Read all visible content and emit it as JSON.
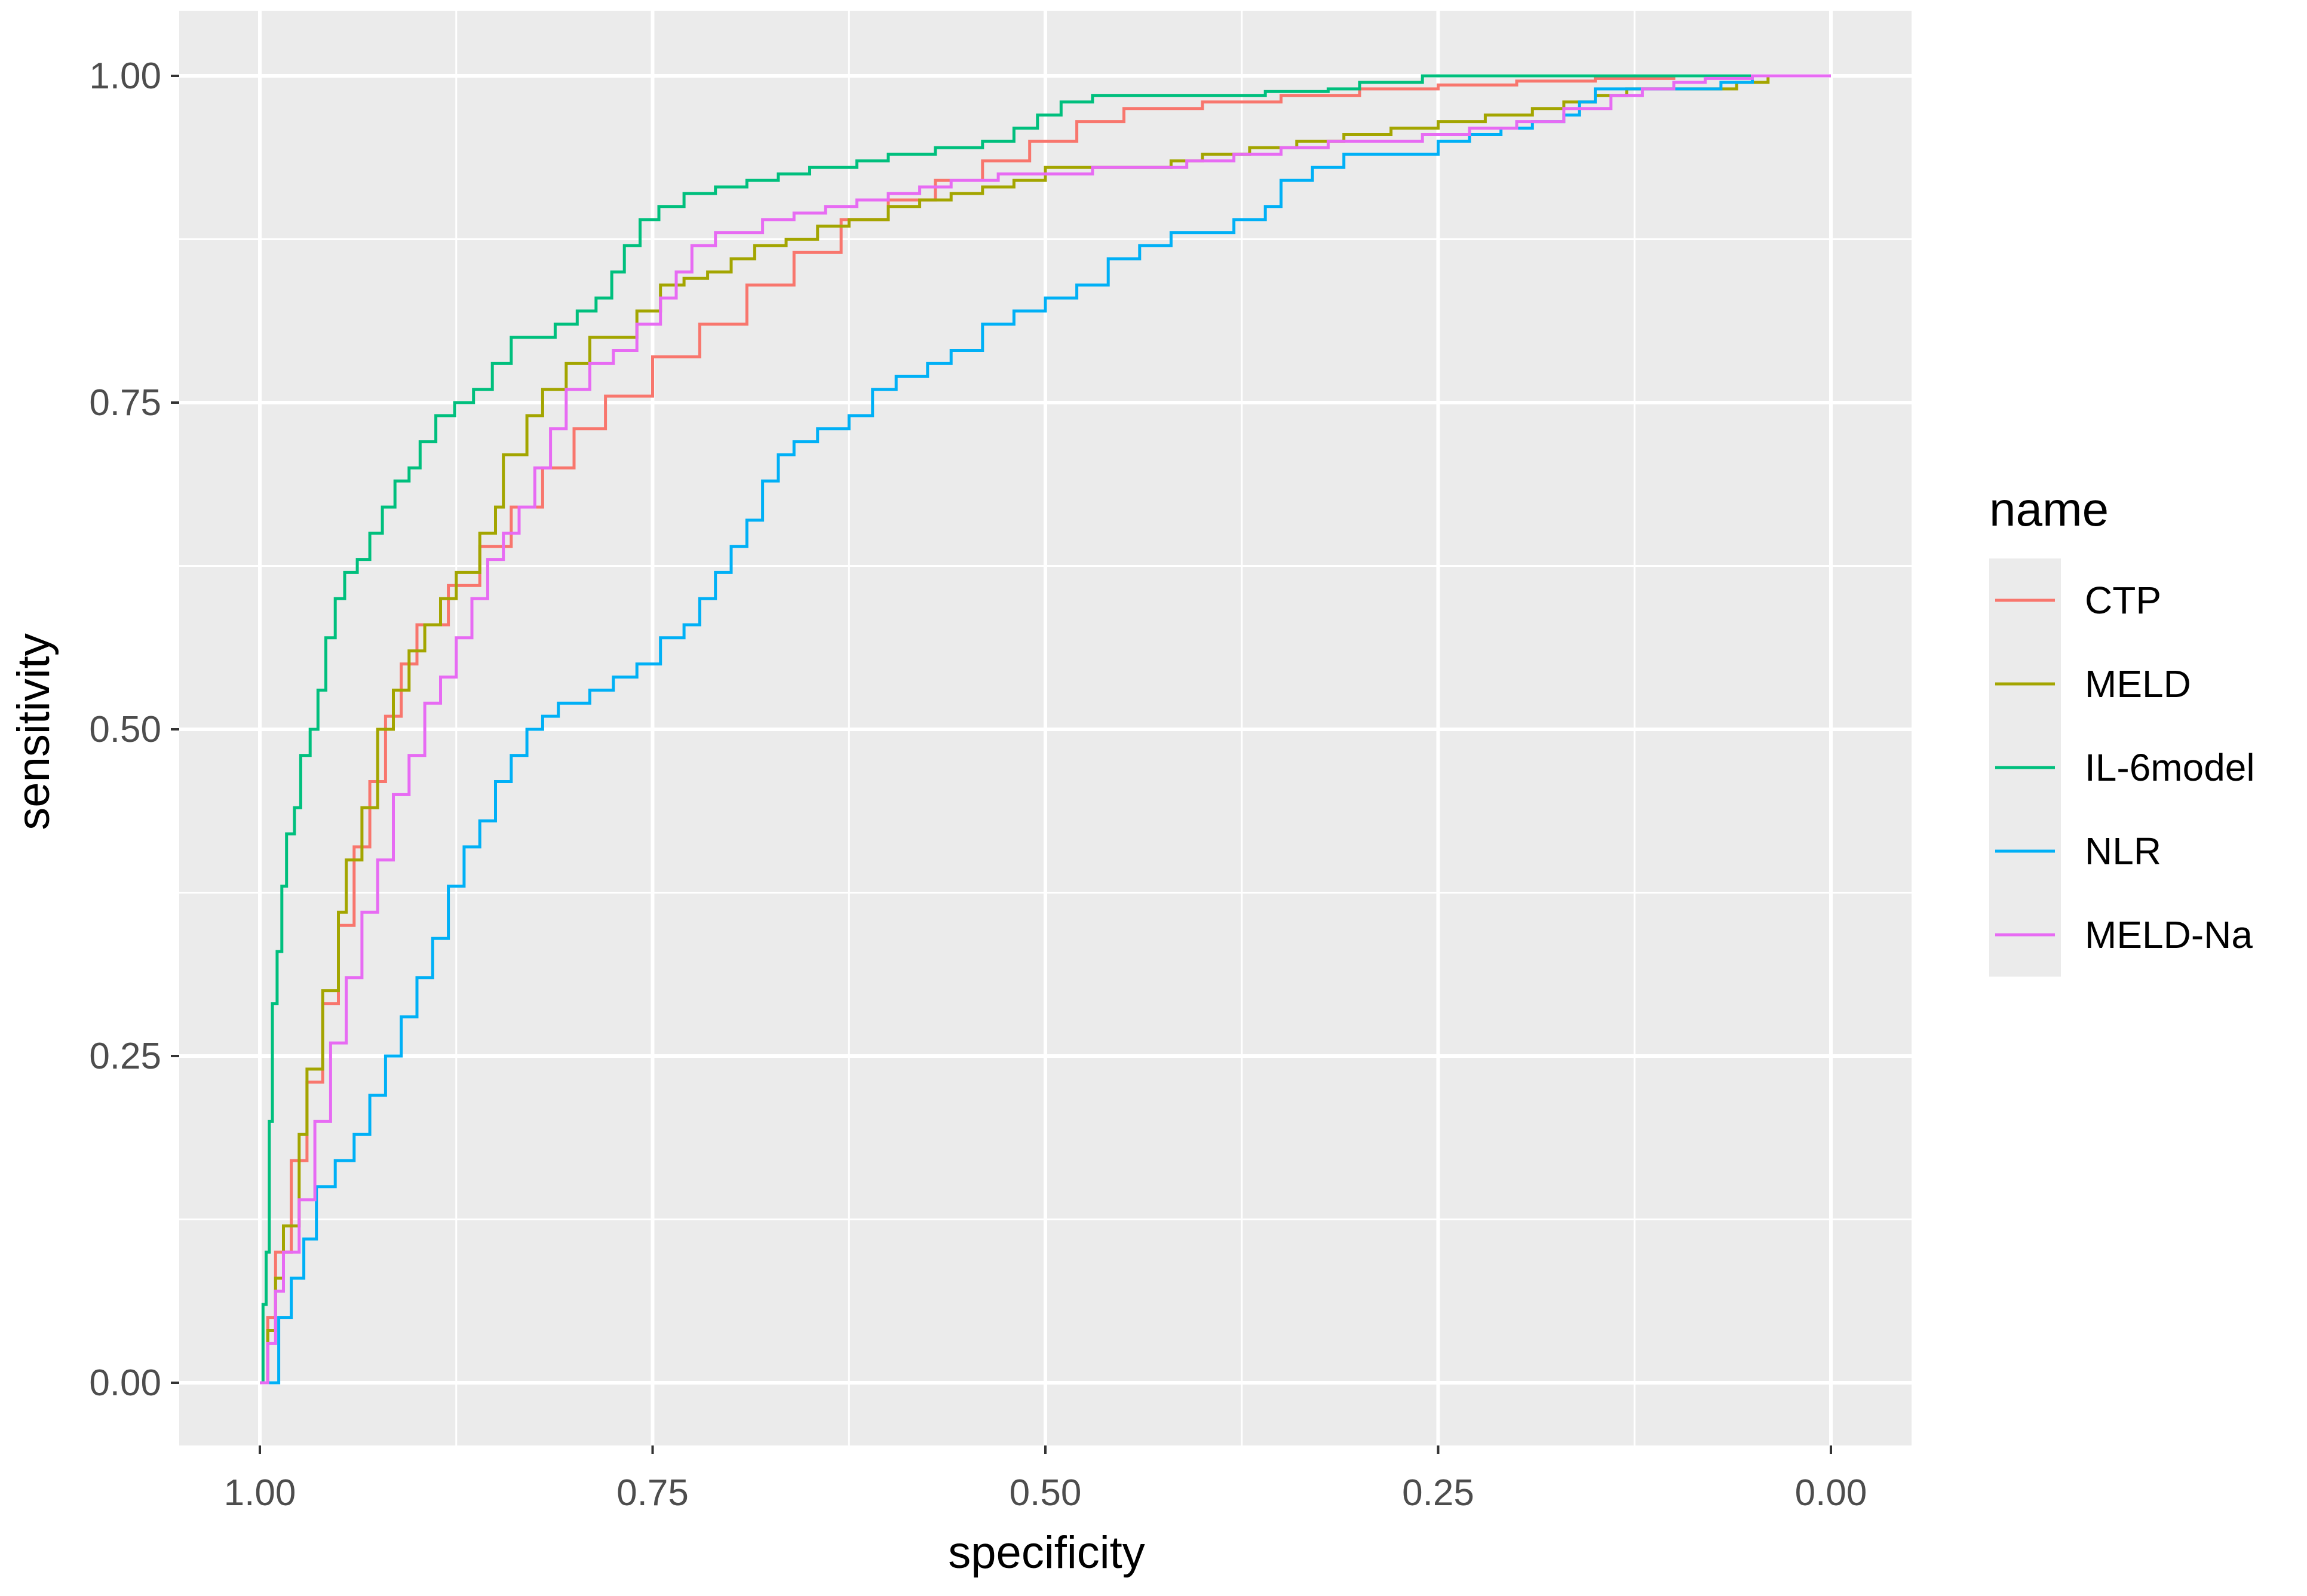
{
  "chart_data": {
    "type": "line",
    "title": "",
    "xlabel": "specificity",
    "ylabel": "sensitivity",
    "xlim": [
      1.0,
      0.0
    ],
    "ylim": [
      0.0,
      1.0
    ],
    "x_reversed": true,
    "x_ticks": [
      "1.00",
      "0.75",
      "0.50",
      "0.25",
      "0.00"
    ],
    "x_tick_values": [
      1.0,
      0.75,
      0.5,
      0.25,
      0.0
    ],
    "y_ticks": [
      "0.00",
      "0.25",
      "0.50",
      "0.75",
      "1.00"
    ],
    "y_tick_values": [
      0.0,
      0.25,
      0.5,
      0.75,
      1.0
    ],
    "grid": true,
    "background_color": "#ebebeb",
    "grid_color": "#ffffff",
    "legend": {
      "title": "name",
      "placement": "right"
    },
    "series": [
      {
        "name": "CTP",
        "color": "#F8766D",
        "points": [
          [
            1.0,
            0.0
          ],
          [
            0.995,
            0.05
          ],
          [
            0.99,
            0.1
          ],
          [
            0.98,
            0.17
          ],
          [
            0.97,
            0.23
          ],
          [
            0.96,
            0.29
          ],
          [
            0.95,
            0.35
          ],
          [
            0.94,
            0.41
          ],
          [
            0.93,
            0.46
          ],
          [
            0.92,
            0.51
          ],
          [
            0.91,
            0.55
          ],
          [
            0.9,
            0.58
          ],
          [
            0.88,
            0.61
          ],
          [
            0.86,
            0.64
          ],
          [
            0.84,
            0.67
          ],
          [
            0.82,
            0.7
          ],
          [
            0.8,
            0.73
          ],
          [
            0.78,
            0.755
          ],
          [
            0.75,
            0.785
          ],
          [
            0.72,
            0.81
          ],
          [
            0.69,
            0.84
          ],
          [
            0.66,
            0.865
          ],
          [
            0.63,
            0.89
          ],
          [
            0.6,
            0.905
          ],
          [
            0.57,
            0.92
          ],
          [
            0.54,
            0.935
          ],
          [
            0.51,
            0.95
          ],
          [
            0.48,
            0.965
          ],
          [
            0.45,
            0.975
          ],
          [
            0.4,
            0.98
          ],
          [
            0.35,
            0.985
          ],
          [
            0.3,
            0.99
          ],
          [
            0.25,
            0.993
          ],
          [
            0.2,
            0.996
          ],
          [
            0.15,
            0.998
          ],
          [
            0.1,
            1.0
          ],
          [
            0.05,
            1.0
          ],
          [
            0.0,
            1.0
          ]
        ]
      },
      {
        "name": "MELD",
        "color": "#A3A500",
        "points": [
          [
            1.0,
            0.0
          ],
          [
            0.995,
            0.04
          ],
          [
            0.99,
            0.08
          ],
          [
            0.985,
            0.12
          ],
          [
            0.975,
            0.19
          ],
          [
            0.97,
            0.24
          ],
          [
            0.96,
            0.3
          ],
          [
            0.95,
            0.36
          ],
          [
            0.945,
            0.4
          ],
          [
            0.935,
            0.44
          ],
          [
            0.925,
            0.5
          ],
          [
            0.915,
            0.53
          ],
          [
            0.905,
            0.56
          ],
          [
            0.895,
            0.58
          ],
          [
            0.885,
            0.6
          ],
          [
            0.875,
            0.62
          ],
          [
            0.86,
            0.65
          ],
          [
            0.85,
            0.67
          ],
          [
            0.845,
            0.71
          ],
          [
            0.83,
            0.74
          ],
          [
            0.82,
            0.76
          ],
          [
            0.805,
            0.78
          ],
          [
            0.79,
            0.8
          ],
          [
            0.775,
            0.8
          ],
          [
            0.76,
            0.82
          ],
          [
            0.745,
            0.84
          ],
          [
            0.73,
            0.845
          ],
          [
            0.715,
            0.85
          ],
          [
            0.7,
            0.86
          ],
          [
            0.685,
            0.87
          ],
          [
            0.665,
            0.875
          ],
          [
            0.645,
            0.885
          ],
          [
            0.625,
            0.89
          ],
          [
            0.6,
            0.9
          ],
          [
            0.58,
            0.905
          ],
          [
            0.56,
            0.91
          ],
          [
            0.54,
            0.915
          ],
          [
            0.52,
            0.92
          ],
          [
            0.5,
            0.93
          ],
          [
            0.48,
            0.93
          ],
          [
            0.45,
            0.93
          ],
          [
            0.42,
            0.935
          ],
          [
            0.4,
            0.94
          ],
          [
            0.37,
            0.945
          ],
          [
            0.34,
            0.95
          ],
          [
            0.31,
            0.955
          ],
          [
            0.28,
            0.96
          ],
          [
            0.25,
            0.965
          ],
          [
            0.22,
            0.97
          ],
          [
            0.19,
            0.975
          ],
          [
            0.17,
            0.98
          ],
          [
            0.15,
            0.985
          ],
          [
            0.13,
            0.99
          ],
          [
            0.1,
            0.99
          ],
          [
            0.08,
            0.99
          ],
          [
            0.06,
            0.995
          ],
          [
            0.04,
            1.0
          ],
          [
            0.0,
            1.0
          ]
        ]
      },
      {
        "name": "IL-6model",
        "color": "#00BF7D",
        "points": [
          [
            1.0,
            0.0
          ],
          [
            0.998,
            0.06
          ],
          [
            0.996,
            0.1
          ],
          [
            0.994,
            0.2
          ],
          [
            0.992,
            0.29
          ],
          [
            0.989,
            0.33
          ],
          [
            0.986,
            0.38
          ],
          [
            0.983,
            0.42
          ],
          [
            0.978,
            0.44
          ],
          [
            0.974,
            0.48
          ],
          [
            0.968,
            0.5
          ],
          [
            0.963,
            0.53
          ],
          [
            0.958,
            0.57
          ],
          [
            0.952,
            0.6
          ],
          [
            0.946,
            0.62
          ],
          [
            0.938,
            0.63
          ],
          [
            0.93,
            0.65
          ],
          [
            0.922,
            0.67
          ],
          [
            0.914,
            0.69
          ],
          [
            0.905,
            0.7
          ],
          [
            0.898,
            0.72
          ],
          [
            0.888,
            0.74
          ],
          [
            0.876,
            0.75
          ],
          [
            0.864,
            0.76
          ],
          [
            0.852,
            0.78
          ],
          [
            0.84,
            0.8
          ],
          [
            0.826,
            0.8
          ],
          [
            0.812,
            0.81
          ],
          [
            0.798,
            0.82
          ],
          [
            0.786,
            0.83
          ],
          [
            0.776,
            0.85
          ],
          [
            0.768,
            0.87
          ],
          [
            0.758,
            0.89
          ],
          [
            0.746,
            0.9
          ],
          [
            0.73,
            0.91
          ],
          [
            0.71,
            0.915
          ],
          [
            0.69,
            0.92
          ],
          [
            0.67,
            0.925
          ],
          [
            0.65,
            0.93
          ],
          [
            0.62,
            0.935
          ],
          [
            0.6,
            0.94
          ],
          [
            0.57,
            0.945
          ],
          [
            0.54,
            0.95
          ],
          [
            0.52,
            0.96
          ],
          [
            0.505,
            0.97
          ],
          [
            0.49,
            0.98
          ],
          [
            0.47,
            0.985
          ],
          [
            0.44,
            0.985
          ],
          [
            0.4,
            0.985
          ],
          [
            0.36,
            0.988
          ],
          [
            0.32,
            0.99
          ],
          [
            0.3,
            0.995
          ],
          [
            0.26,
            1.0
          ],
          [
            0.2,
            1.0
          ],
          [
            0.1,
            1.0
          ],
          [
            0.0,
            1.0
          ]
        ]
      },
      {
        "name": "NLR",
        "color": "#00B0F6",
        "points": [
          [
            1.0,
            0.0
          ],
          [
            0.99,
            0.0
          ],
          [
            0.988,
            0.05
          ],
          [
            0.98,
            0.08
          ],
          [
            0.972,
            0.11
          ],
          [
            0.964,
            0.15
          ],
          [
            0.952,
            0.17
          ],
          [
            0.94,
            0.19
          ],
          [
            0.93,
            0.22
          ],
          [
            0.92,
            0.25
          ],
          [
            0.91,
            0.28
          ],
          [
            0.9,
            0.31
          ],
          [
            0.89,
            0.34
          ],
          [
            0.88,
            0.38
          ],
          [
            0.87,
            0.41
          ],
          [
            0.86,
            0.43
          ],
          [
            0.85,
            0.46
          ],
          [
            0.84,
            0.48
          ],
          [
            0.83,
            0.5
          ],
          [
            0.82,
            0.51
          ],
          [
            0.81,
            0.52
          ],
          [
            0.79,
            0.53
          ],
          [
            0.775,
            0.54
          ],
          [
            0.76,
            0.55
          ],
          [
            0.745,
            0.57
          ],
          [
            0.73,
            0.58
          ],
          [
            0.72,
            0.6
          ],
          [
            0.71,
            0.62
          ],
          [
            0.7,
            0.64
          ],
          [
            0.69,
            0.66
          ],
          [
            0.68,
            0.69
          ],
          [
            0.67,
            0.71
          ],
          [
            0.66,
            0.72
          ],
          [
            0.645,
            0.73
          ],
          [
            0.625,
            0.74
          ],
          [
            0.61,
            0.76
          ],
          [
            0.595,
            0.77
          ],
          [
            0.575,
            0.78
          ],
          [
            0.56,
            0.79
          ],
          [
            0.54,
            0.81
          ],
          [
            0.52,
            0.82
          ],
          [
            0.5,
            0.83
          ],
          [
            0.48,
            0.84
          ],
          [
            0.46,
            0.86
          ],
          [
            0.44,
            0.87
          ],
          [
            0.42,
            0.88
          ],
          [
            0.4,
            0.88
          ],
          [
            0.38,
            0.89
          ],
          [
            0.36,
            0.9
          ],
          [
            0.35,
            0.92
          ],
          [
            0.33,
            0.93
          ],
          [
            0.31,
            0.94
          ],
          [
            0.29,
            0.94
          ],
          [
            0.27,
            0.94
          ],
          [
            0.25,
            0.95
          ],
          [
            0.23,
            0.955
          ],
          [
            0.21,
            0.96
          ],
          [
            0.19,
            0.965
          ],
          [
            0.17,
            0.97
          ],
          [
            0.16,
            0.98
          ],
          [
            0.15,
            0.99
          ],
          [
            0.13,
            0.99
          ],
          [
            0.11,
            0.99
          ],
          [
            0.09,
            0.99
          ],
          [
            0.07,
            0.995
          ],
          [
            0.05,
            1.0
          ],
          [
            0.0,
            1.0
          ]
        ]
      },
      {
        "name": "MELD-Na",
        "color": "#E76BF3",
        "points": [
          [
            1.0,
            0.0
          ],
          [
            0.995,
            0.03
          ],
          [
            0.99,
            0.07
          ],
          [
            0.985,
            0.1
          ],
          [
            0.975,
            0.14
          ],
          [
            0.965,
            0.2
          ],
          [
            0.955,
            0.26
          ],
          [
            0.945,
            0.31
          ],
          [
            0.935,
            0.36
          ],
          [
            0.925,
            0.4
          ],
          [
            0.915,
            0.45
          ],
          [
            0.905,
            0.48
          ],
          [
            0.895,
            0.52
          ],
          [
            0.885,
            0.54
          ],
          [
            0.875,
            0.57
          ],
          [
            0.865,
            0.6
          ],
          [
            0.855,
            0.63
          ],
          [
            0.845,
            0.65
          ],
          [
            0.835,
            0.67
          ],
          [
            0.825,
            0.7
          ],
          [
            0.815,
            0.73
          ],
          [
            0.805,
            0.76
          ],
          [
            0.79,
            0.78
          ],
          [
            0.775,
            0.79
          ],
          [
            0.76,
            0.81
          ],
          [
            0.745,
            0.83
          ],
          [
            0.735,
            0.85
          ],
          [
            0.725,
            0.87
          ],
          [
            0.71,
            0.88
          ],
          [
            0.695,
            0.88
          ],
          [
            0.68,
            0.89
          ],
          [
            0.66,
            0.895
          ],
          [
            0.64,
            0.9
          ],
          [
            0.62,
            0.905
          ],
          [
            0.6,
            0.91
          ],
          [
            0.58,
            0.915
          ],
          [
            0.56,
            0.92
          ],
          [
            0.53,
            0.925
          ],
          [
            0.5,
            0.925
          ],
          [
            0.47,
            0.93
          ],
          [
            0.44,
            0.93
          ],
          [
            0.41,
            0.935
          ],
          [
            0.38,
            0.94
          ],
          [
            0.35,
            0.945
          ],
          [
            0.32,
            0.95
          ],
          [
            0.29,
            0.95
          ],
          [
            0.26,
            0.955
          ],
          [
            0.23,
            0.96
          ],
          [
            0.2,
            0.965
          ],
          [
            0.17,
            0.975
          ],
          [
            0.14,
            0.985
          ],
          [
            0.12,
            0.99
          ],
          [
            0.1,
            0.995
          ],
          [
            0.08,
            0.998
          ],
          [
            0.05,
            1.0
          ],
          [
            0.0,
            1.0
          ]
        ]
      }
    ]
  }
}
